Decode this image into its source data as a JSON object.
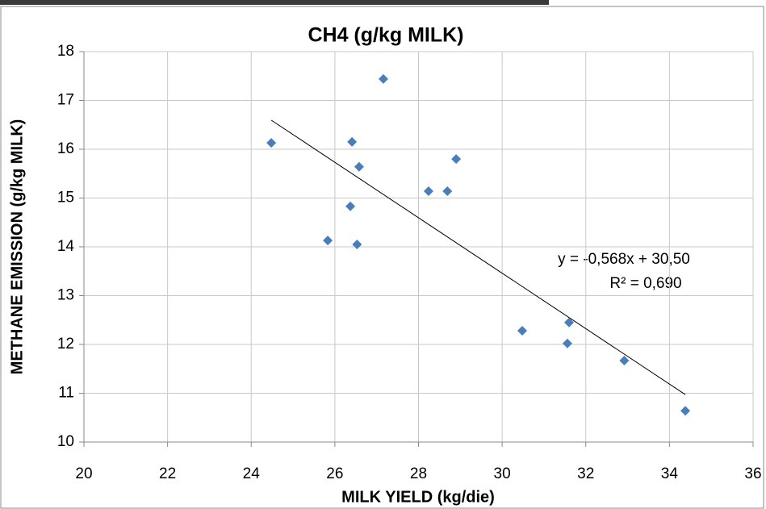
{
  "chart_data": {
    "type": "scatter",
    "title": "CH4 (g/kg MILK)",
    "x_label": "MILK YIELD (kg/die)",
    "y_label": "METHANE EMISSION (g/kg MILK)",
    "series": [
      {
        "name": "CH4",
        "color": "#4a7ebb",
        "x": [
          24.48,
          27.16,
          25.83,
          26.41,
          26.58,
          28.24,
          28.69,
          28.9,
          26.37,
          26.53,
          30.48,
          31.6,
          31.56,
          32.92,
          34.38
        ],
        "values": [
          16.13,
          17.44,
          14.13,
          16.15,
          15.64,
          15.14,
          15.14,
          15.8,
          14.83,
          14.05,
          12.28,
          12.45,
          12.02,
          11.67,
          10.64
        ]
      }
    ],
    "trendline": {
      "slope": -0.568,
      "intercept": 30.5,
      "color": "#000000"
    },
    "annotations": [
      "y = -0,568x + 30,50",
      "R² = 0,690"
    ],
    "xlim": [
      20,
      36
    ],
    "xticks": [
      20,
      22,
      24,
      26,
      28,
      30,
      32,
      34,
      36
    ],
    "ylim": [
      10,
      18
    ],
    "yticks": [
      10,
      11,
      12,
      13,
      14,
      15,
      16,
      17,
      18
    ],
    "grid": true
  }
}
